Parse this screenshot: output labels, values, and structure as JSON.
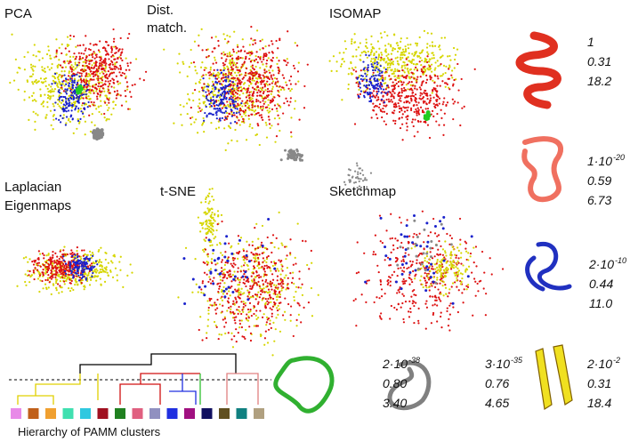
{
  "panels": [
    {
      "title": "PCA"
    },
    {
      "title_lines": [
        "Dist.",
        "match."
      ]
    },
    {
      "title": "ISOMAP"
    },
    {
      "title_lines": [
        "Laplacian",
        "Eigenmaps"
      ]
    },
    {
      "title": "t-SNE"
    },
    {
      "title": "Sketchmap"
    }
  ],
  "structures": [
    {
      "p": {
        "mantissa": "1",
        "exponent": ""
      },
      "values": [
        "0.31",
        "18.2"
      ]
    },
    {
      "p": {
        "mantissa": "1·10",
        "exponent": "-20"
      },
      "values": [
        "0.59",
        "6.73"
      ]
    },
    {
      "p": {
        "mantissa": "2·10",
        "exponent": "-10"
      },
      "values": [
        "0.44",
        "11.0"
      ]
    },
    {
      "p": {
        "mantissa": "2·10",
        "exponent": "-2"
      },
      "values": [
        "0.31",
        "18.4"
      ]
    },
    {
      "p": {
        "mantissa": "2·10",
        "exponent": "-38"
      },
      "values": [
        "0.80",
        "3.40"
      ]
    },
    {
      "p": {
        "mantissa": "3·10",
        "exponent": "-35"
      },
      "values": [
        "0.76",
        "4.65"
      ]
    }
  ],
  "dendrogram": {
    "caption": "Hierarchy of PAMM clusters"
  }
}
